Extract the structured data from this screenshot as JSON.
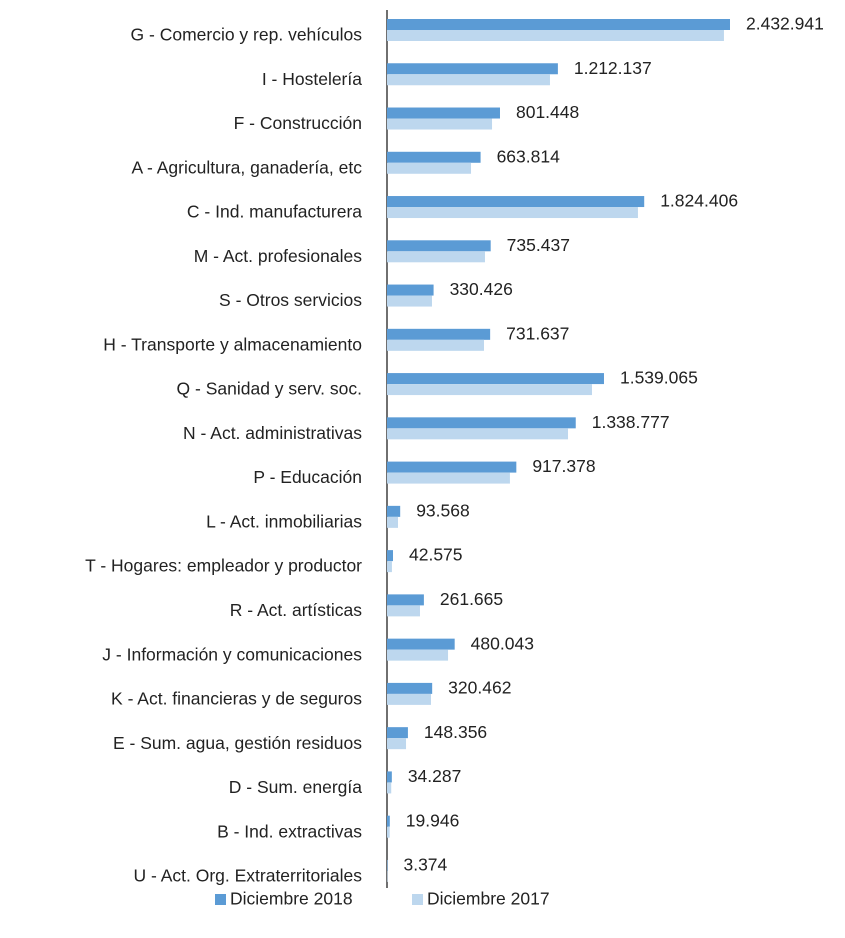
{
  "chart_data": {
    "type": "bar",
    "orientation": "horizontal",
    "categories": [
      "G - Comercio y rep. vehículos",
      "I - Hostelería",
      "F - Construcción",
      "A - Agricultura, ganadería, etc",
      "C - Ind. manufacturera",
      "M - Act. profesionales",
      "S - Otros servicios",
      "H - Transporte y almacenamiento",
      "Q - Sanidad y serv. soc.",
      "N - Act. administrativas",
      "P - Educación",
      "L - Act. inmobiliarias",
      "T - Hogares: empleador y productor",
      "R - Act. artísticas",
      "J - Información y comunicaciones",
      "K - Act. financieras y de seguros",
      "E - Sum. agua, gestión residuos",
      "D - Sum. energía",
      "B - Ind. extractivas",
      "U - Act. Org. Extraterritoriales"
    ],
    "series": [
      {
        "name": "Diciembre 2018",
        "color": "#5b9bd5",
        "values": [
          2432941,
          1212137,
          801448,
          663814,
          1824406,
          735437,
          330426,
          731637,
          1539065,
          1338777,
          917378,
          93568,
          42575,
          261665,
          480043,
          320462,
          148356,
          34287,
          19946,
          3374
        ],
        "value_labels": [
          "2.432.941",
          "1.212.137",
          "801.448",
          "663.814",
          "1.824.406",
          "735.437",
          "330.426",
          "731.637",
          "1.539.065",
          "1.338.777",
          "917.378",
          "93.568",
          "42.575",
          "261.665",
          "480.043",
          "320.462",
          "148.356",
          "34.287",
          "19.946",
          "3.374"
        ]
      },
      {
        "name": "Diciembre 2017",
        "color": "#bdd7ee",
        "values": [
          2390000,
          1156000,
          745000,
          596000,
          1780000,
          695000,
          319000,
          688000,
          1454000,
          1284000,
          872000,
          78000,
          35000,
          234000,
          433000,
          312000,
          135000,
          30000,
          19000,
          3000
        ]
      }
    ],
    "legend": "bottom"
  }
}
